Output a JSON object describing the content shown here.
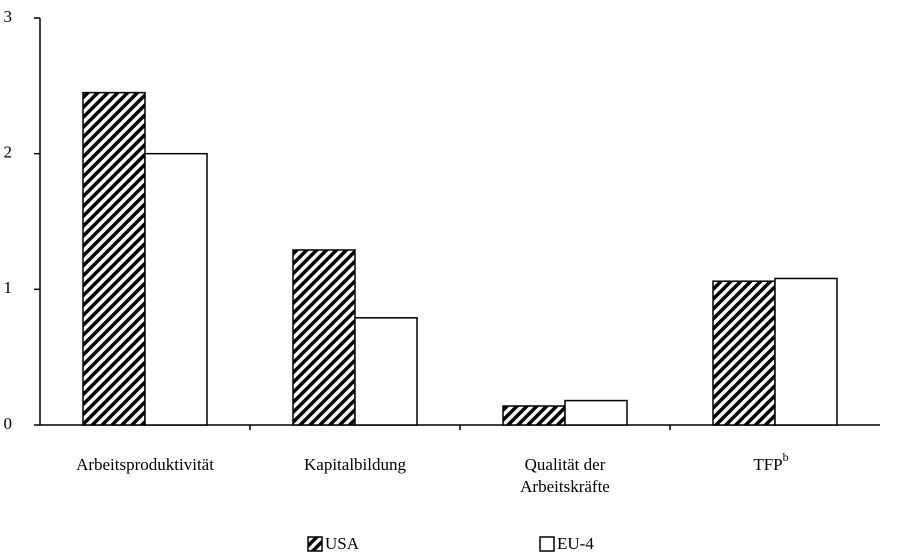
{
  "chart_data": {
    "type": "bar",
    "categories": [
      "Arbeitsproduktivität",
      "Kapitalbildung",
      "Qualität der Arbeitskräfte",
      "TFP"
    ],
    "category_footnotes": [
      null,
      null,
      null,
      "b"
    ],
    "series": [
      {
        "name": "USA",
        "color": "#000000",
        "hatch": true,
        "values": [
          2.45,
          1.29,
          0.14,
          1.06
        ]
      },
      {
        "name": "EU-4",
        "color": "#ffffff",
        "hatch": false,
        "values": [
          2.0,
          0.79,
          0.18,
          1.08
        ]
      }
    ],
    "ylim": [
      0,
      3
    ],
    "yticks": [
      0,
      1,
      2,
      3
    ],
    "grid": false,
    "legend": "bottom"
  }
}
